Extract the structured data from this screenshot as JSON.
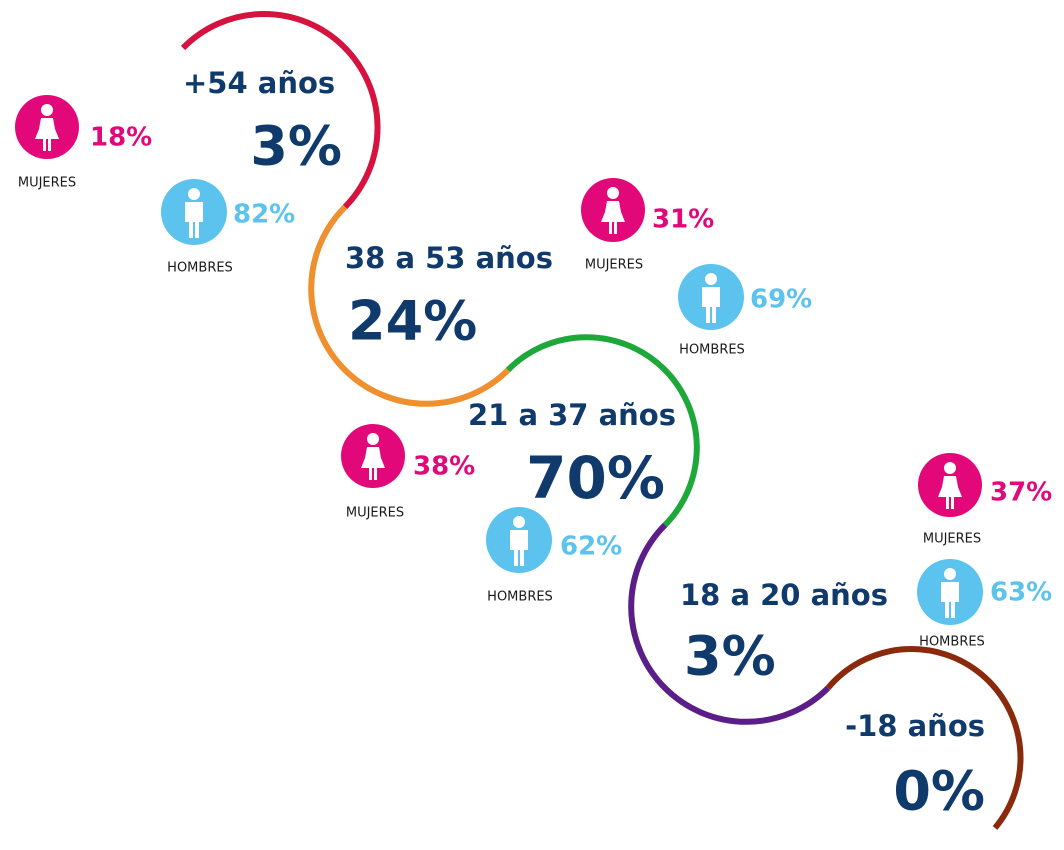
{
  "groups": [
    {
      "age": "+54 años",
      "share": "3%",
      "women": {
        "value": "18%",
        "label": "MUJERES"
      },
      "men": {
        "value": "82%",
        "label": "HOMBRES"
      }
    },
    {
      "age": "38 a 53 años",
      "share": "24%",
      "women": {
        "value": "31%",
        "label": "MUJERES"
      },
      "men": {
        "value": "69%",
        "label": "HOMBRES"
      }
    },
    {
      "age": "21 a 37 años",
      "share": "70%",
      "women": {
        "value": "38%",
        "label": "MUJERES"
      },
      "men": {
        "value": "62%",
        "label": "HOMBRES"
      }
    },
    {
      "age": "18 a 20 años",
      "share": "3%",
      "women": {
        "value": "37%",
        "label": "MUJERES"
      },
      "men": {
        "value": "63%",
        "label": "HOMBRES"
      }
    },
    {
      "age": "-18 años",
      "share": "0%"
    }
  ]
}
